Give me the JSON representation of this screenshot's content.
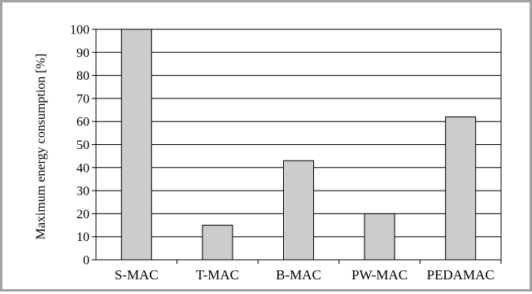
{
  "chart_data": {
    "type": "bar",
    "title": "",
    "xlabel": "",
    "ylabel": "Maximum energy consumption [%]",
    "categories": [
      "S-MAC",
      "T-MAC",
      "B-MAC",
      "PW-MAC",
      "PEDAMAC"
    ],
    "values": [
      100,
      15,
      43,
      20,
      62
    ],
    "ylim": [
      0,
      100
    ],
    "yticks": [
      0,
      10,
      20,
      30,
      40,
      50,
      60,
      70,
      80,
      90,
      100
    ],
    "grid": true,
    "bar_color": "#cccccc",
    "legend": "none"
  }
}
